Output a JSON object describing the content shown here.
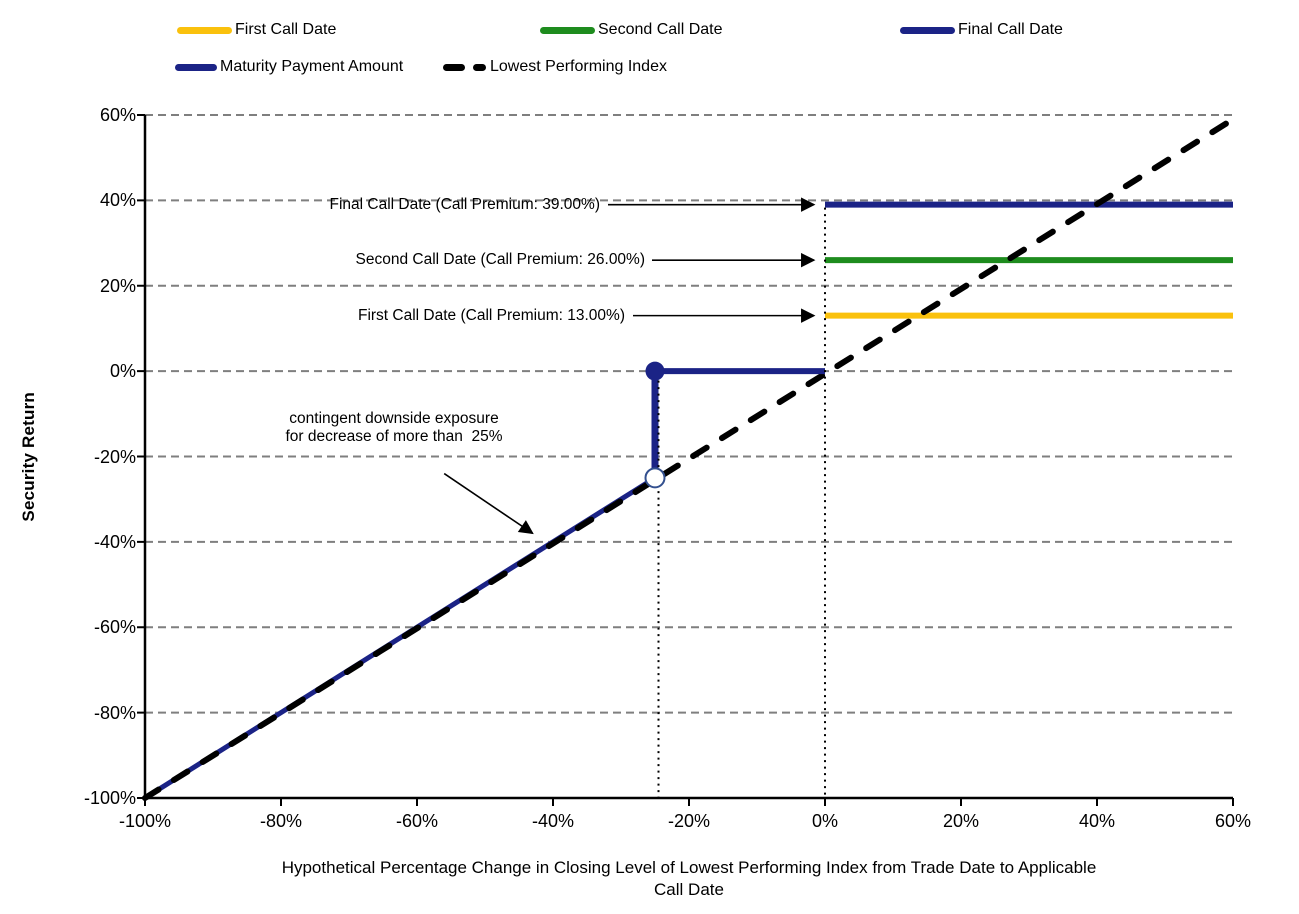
{
  "chart_data": {
    "type": "line",
    "title": "",
    "xlabel": "Hypothetical Percentage Change in Closing Level of Lowest Performing Index from Trade Date to Applicable Call Date",
    "xlabel_lines": [
      "Hypothetical Percentage Change in Closing Level of Lowest Performing Index from Trade Date to Applicable",
      "Call Date"
    ],
    "ylabel": "Security Return",
    "xlim": [
      -100,
      60
    ],
    "ylim": [
      -100,
      60
    ],
    "xticks": [
      -100,
      -80,
      -60,
      -40,
      -20,
      0,
      20,
      40,
      60
    ],
    "yticks": [
      -100,
      -80,
      -60,
      -40,
      -20,
      0,
      20,
      40,
      60
    ],
    "tick_format": "percent",
    "grid": {
      "horizontal": true,
      "vertical": false,
      "color": "#7F7F7F",
      "style": "dashed"
    },
    "series": [
      {
        "name": "First Call Date",
        "color": "#FAC10D",
        "style": "solid",
        "width": 6,
        "points": [
          [
            0,
            13
          ],
          [
            60,
            13
          ]
        ]
      },
      {
        "name": "Second Call Date",
        "color": "#1E8C1E",
        "style": "solid",
        "width": 6,
        "points": [
          [
            0,
            26
          ],
          [
            60,
            26
          ]
        ]
      },
      {
        "name": "Final Call Date",
        "color": "#1B2386",
        "style": "solid",
        "width": 6,
        "points": [
          [
            0,
            39
          ],
          [
            60,
            39
          ]
        ]
      },
      {
        "name": "Maturity Payment Amount",
        "color": "#1B2386",
        "style": "solid",
        "width": 6,
        "points": [
          [
            -100,
            -100
          ],
          [
            -25,
            -25
          ],
          [
            -25,
            0
          ],
          [
            0,
            0
          ]
        ],
        "markers": [
          {
            "at": [
              -25,
              0
            ],
            "kind": "filled-circle"
          },
          {
            "at": [
              -25,
              -25
            ],
            "kind": "open-circle"
          }
        ]
      },
      {
        "name": "Lowest Performing Index",
        "color": "#000000",
        "style": "dashed",
        "width": 6,
        "points": [
          [
            -100,
            -100
          ],
          [
            60,
            59
          ]
        ]
      }
    ],
    "guide_lines": [
      {
        "x": -25,
        "y_from": -100,
        "y_to": 0,
        "style": "dotted"
      },
      {
        "x": 0,
        "y_from": -100,
        "y_to": 39,
        "style": "dotted"
      }
    ],
    "key_values": {
      "first_call_premium": "13.00%",
      "second_call_premium": "26.00%",
      "final_call_premium": "39.00%",
      "downside_threshold": "25%"
    }
  },
  "legend": {
    "row1": [
      {
        "label": "First Call Date",
        "color": "#FAC10D",
        "style": "solid"
      },
      {
        "label": "Second Call Date",
        "color": "#1E8C1E",
        "style": "solid"
      },
      {
        "label": "Final Call Date",
        "color": "#1B2386",
        "style": "solid"
      }
    ],
    "row2": [
      {
        "label": "Maturity Payment Amount",
        "color": "#1B2386",
        "style": "solid"
      },
      {
        "label": "Lowest Performing Index",
        "color": "#000000",
        "style": "dashed"
      }
    ]
  },
  "annotations": {
    "callouts": [
      {
        "text": "Final Call Date (Call Premium: 39.00%)",
        "target": [
          0,
          39
        ]
      },
      {
        "text": "Second Call Date (Call Premium: 26.00%)",
        "target": [
          0,
          26
        ]
      },
      {
        "text": "First Call Date (Call Premium: 13.00%)",
        "target": [
          0,
          13
        ]
      }
    ],
    "downside": {
      "line1": "contingent downside exposure",
      "line2": "for decrease of more than  25%",
      "arrow_from": [
        -56,
        -24
      ],
      "arrow_to": [
        -43,
        -38
      ]
    }
  }
}
